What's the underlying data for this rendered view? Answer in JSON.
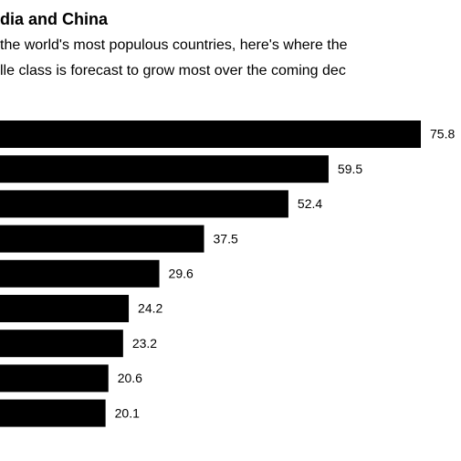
{
  "chart_data": {
    "type": "bar",
    "horizontal": true,
    "title": "dia and China",
    "subtitle": [
      "the world's most populous countries, here's where the",
      "lle class is forecast to grow most over the coming dec"
    ],
    "values": [
      75.8,
      59.5,
      52.4,
      37.5,
      29.6,
      24.2,
      23.2,
      20.6,
      20.1
    ],
    "color": "#000000"
  }
}
